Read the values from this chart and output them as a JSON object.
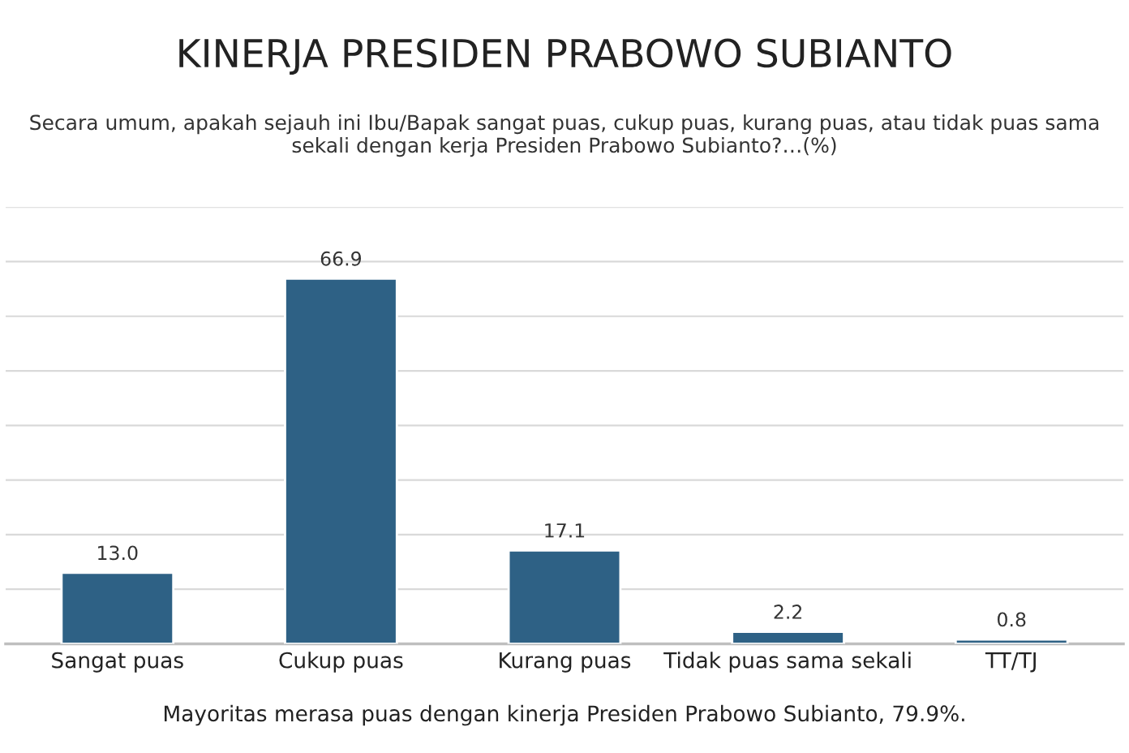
{
  "chart_data": {
    "type": "bar",
    "title": "KINERJA PRESIDEN PRABOWO SUBIANTO",
    "subtitle": "Secara umum, apakah sejauh ini Ibu/Bapak sangat puas, cukup puas, kurang puas, atau tidak puas sama sekali dengan kerja Presiden Prabowo Subianto?…(%)",
    "categories": [
      "Sangat puas",
      "Cukup puas",
      "Kurang puas",
      "Tidak puas sama sekali",
      "TT/TJ"
    ],
    "values": [
      13.0,
      66.9,
      17.1,
      2.2,
      0.8
    ],
    "value_labels": [
      "13.0",
      "66.9",
      "17.1",
      "2.2",
      "0.8"
    ],
    "color": "#2e6185",
    "ylim": [
      0,
      80
    ],
    "yticks": [
      {
        "value": 0,
        "label": null
      },
      {
        "value": 10,
        "label": null
      },
      {
        "value": 20,
        "label": null
      },
      {
        "value": 30,
        "label": null
      },
      {
        "value": 40,
        "label": null
      },
      {
        "value": 50,
        "label": null
      },
      {
        "value": 60,
        "label": null
      },
      {
        "value": 70,
        "label": null
      },
      {
        "value": 80,
        "label": null
      }
    ],
    "tick_labels": "x",
    "grid": "y",
    "legend": false,
    "annotations": [
      "Mayoritas merasa puas dengan kinerja Presiden Prabowo Subianto, 79.9%."
    ]
  }
}
